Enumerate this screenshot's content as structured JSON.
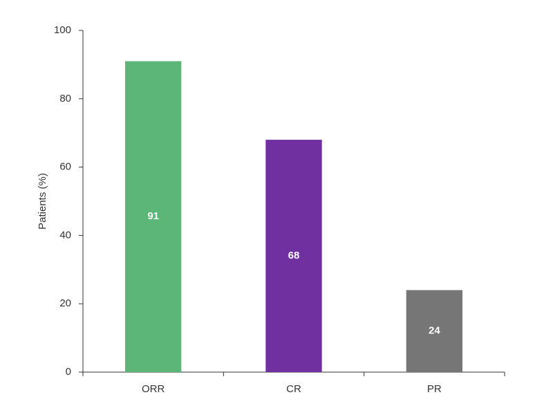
{
  "chart_data": {
    "type": "bar",
    "y_label": "Patients (%)",
    "categories": [
      "ORR",
      "CR",
      "PR"
    ],
    "values": [
      91,
      68,
      24
    ],
    "colors": [
      "#5cb677",
      "#7030a0",
      "#767676"
    ],
    "ylim": [
      0,
      100
    ],
    "yticks": [
      0,
      20,
      40,
      60,
      80,
      100
    ],
    "grid": false
  }
}
